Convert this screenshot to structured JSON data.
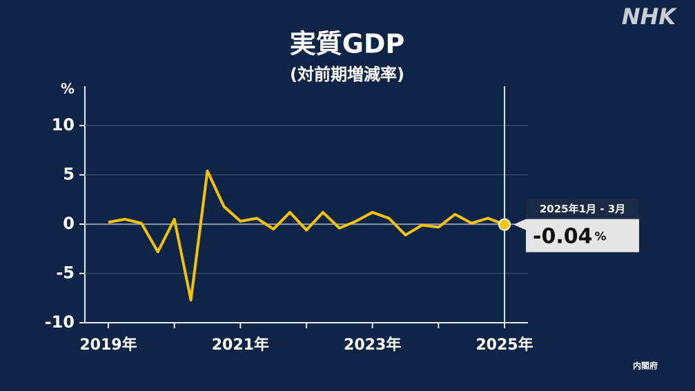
{
  "chart_data": {
    "type": "line",
    "logo": "NHK",
    "title": "実質GDP",
    "subtitle": "(対前期増減率)",
    "unit": "%",
    "source": "内閣府",
    "categories": [
      "2019年",
      null,
      null,
      null,
      null,
      null,
      null,
      null,
      "2021年",
      null,
      null,
      null,
      null,
      null,
      null,
      null,
      "2023年",
      null,
      null,
      null,
      null,
      null,
      null,
      null,
      "2025年"
    ],
    "values": [
      0.2,
      0.5,
      0.1,
      -2.8,
      0.5,
      -7.7,
      5.4,
      1.8,
      0.3,
      0.6,
      -0.5,
      1.2,
      -0.6,
      1.2,
      -0.4,
      0.3,
      1.2,
      0.6,
      -1.1,
      -0.1,
      -0.3,
      1.0,
      0.1,
      0.6,
      -0.04
    ],
    "color": "#f5c400",
    "ylim": [
      -10,
      14
    ],
    "yticks": [
      10,
      5,
      0,
      -5,
      -10
    ],
    "grid": true,
    "annotation": {
      "label": "2025年1月 - 3月"
    }
  }
}
